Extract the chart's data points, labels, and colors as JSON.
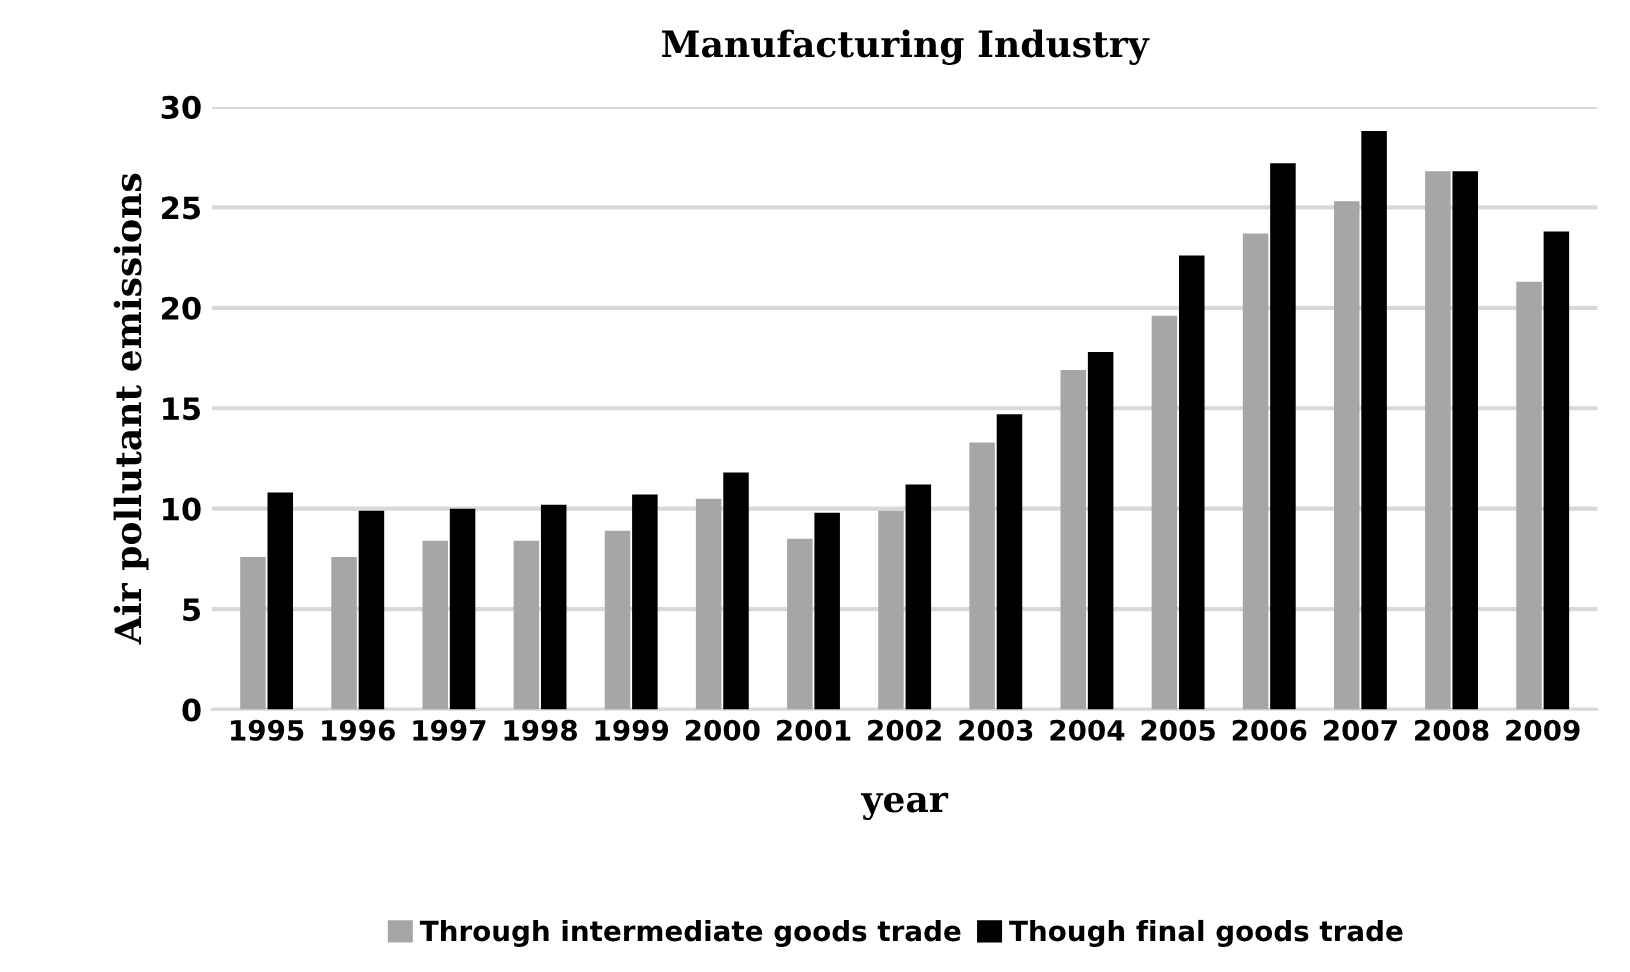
{
  "chart_data": {
    "type": "bar",
    "title": "Manufacturing Industry",
    "xlabel": "year",
    "ylabel": "Air pollutant emissions",
    "categories": [
      "1995",
      "1996",
      "1997",
      "1998",
      "1999",
      "2000",
      "2001",
      "2002",
      "2003",
      "2004",
      "2005",
      "2006",
      "2007",
      "2008",
      "2009"
    ],
    "series": [
      {
        "name": "Through intermediate goods trade",
        "color": "#a6a6a6",
        "values": [
          7.6,
          7.6,
          8.4,
          8.4,
          8.9,
          10.5,
          8.5,
          9.9,
          13.3,
          16.9,
          19.6,
          23.7,
          25.3,
          26.8,
          21.3
        ]
      },
      {
        "name": "Though final goods trade",
        "color": "#000000",
        "values": [
          10.8,
          9.9,
          10.0,
          10.2,
          10.7,
          11.8,
          9.8,
          11.2,
          14.7,
          17.8,
          22.6,
          27.2,
          28.8,
          26.8,
          23.8
        ]
      }
    ],
    "ylim": [
      0,
      30
    ],
    "yticks": [
      0,
      5,
      10,
      15,
      20,
      25,
      30
    ],
    "grid": "y",
    "legend": "bottom"
  }
}
